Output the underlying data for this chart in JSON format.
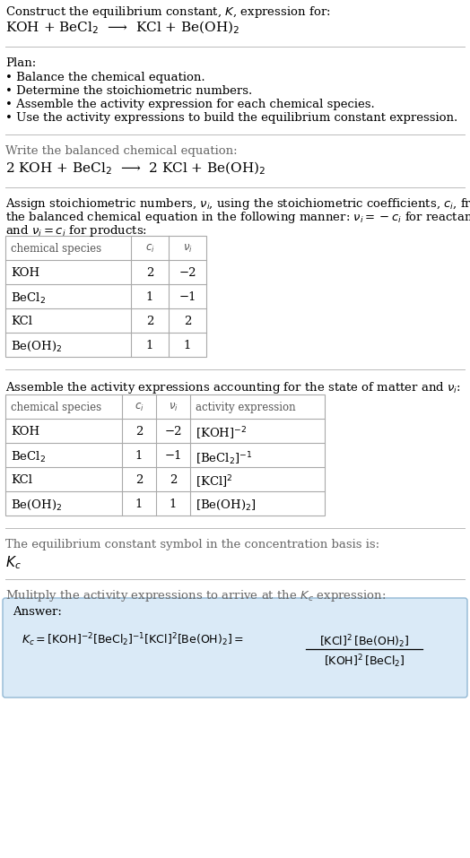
{
  "title_line1": "Construct the equilibrium constant, $K$, expression for:",
  "title_line2": "KOH + BeCl$_2$  ⟶  KCl + Be(OH)$_2$",
  "plan_header": "Plan:",
  "plan_steps": [
    "• Balance the chemical equation.",
    "• Determine the stoichiometric numbers.",
    "• Assemble the activity expression for each chemical species.",
    "• Use the activity expressions to build the equilibrium constant expression."
  ],
  "balanced_header": "Write the balanced chemical equation:",
  "balanced_eq": "2 KOH + BeCl$_2$  ⟶  2 KCl + Be(OH)$_2$",
  "stoich_intro1": "Assign stoichiometric numbers, $\\nu_i$, using the stoichiometric coefficients, $c_i$, from",
  "stoich_intro2": "the balanced chemical equation in the following manner: $\\nu_i = -c_i$ for reactants",
  "stoich_intro3": "and $\\nu_i = c_i$ for products:",
  "table1_headers": [
    "chemical species",
    "$c_i$",
    "$\\nu_i$"
  ],
  "table1_rows": [
    [
      "KOH",
      "2",
      "−2"
    ],
    [
      "BeCl$_2$",
      "1",
      "−1"
    ],
    [
      "KCl",
      "2",
      "2"
    ],
    [
      "Be(OH)$_2$",
      "1",
      "1"
    ]
  ],
  "activity_intro": "Assemble the activity expressions accounting for the state of matter and $\\nu_i$:",
  "table2_headers": [
    "chemical species",
    "$c_i$",
    "$\\nu_i$",
    "activity expression"
  ],
  "table2_rows": [
    [
      "KOH",
      "2",
      "−2",
      "[KOH]$^{-2}$"
    ],
    [
      "BeCl$_2$",
      "1",
      "−1",
      "[BeCl$_2$]$^{-1}$"
    ],
    [
      "KCl",
      "2",
      "2",
      "[KCl]$^2$"
    ],
    [
      "Be(OH)$_2$",
      "1",
      "1",
      "[Be(OH)$_2$]"
    ]
  ],
  "kc_symbol_text": "The equilibrium constant symbol in the concentration basis is:",
  "kc_symbol": "$K_c$",
  "multiply_text": "Mulitply the activity expressions to arrive at the $K_c$ expression:",
  "answer_label": "Answer:",
  "answer_box_color": "#daeaf7",
  "answer_box_border": "#92b8d4",
  "bg_color": "#ffffff",
  "text_color": "#000000",
  "table_line_color": "#aaaaaa",
  "separator_color": "#bbbbbb",
  "font_size": 9.5,
  "title_eq_font": 11,
  "table_header_font": 8.5,
  "table_body_font": 9.5
}
